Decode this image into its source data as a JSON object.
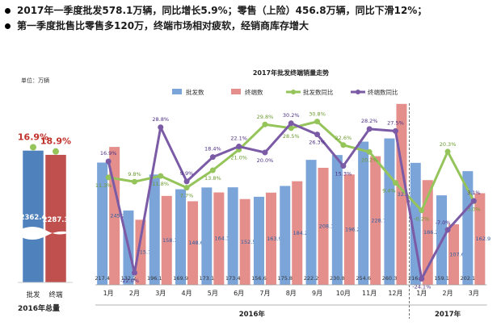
{
  "headline": {
    "bullets": [
      "2017年一季度批发578.1万辆，同比增长5.9%；零售（上险）456.8万辆，同比下滑12%；",
      "第一季度批售比零售多120万，终端市场相对疲软，经销商库存增大"
    ]
  },
  "colors": {
    "wholesale": "#7BA4D9",
    "retail": "#E48F8C",
    "wholesale_yoy": "#95C45A",
    "retail_yoy": "#7B5AA6",
    "pct_red": "#C0312B",
    "left_blue": "#4F81BD",
    "left_red": "#C0504D"
  },
  "chart_data": [
    {
      "type": "bar",
      "title": "",
      "unit_label": "单位：万辆",
      "categories": [
        "批发",
        "终端"
      ],
      "values": [
        2362.4,
        2287.3
      ],
      "growth_labels": [
        "16.9%",
        "18.9%"
      ],
      "footer": "2016年总量",
      "ylim": [
        0,
        2600
      ]
    },
    {
      "type": "bar",
      "title": "2017年批发终端销量走势",
      "categories": [
        "1月",
        "2月",
        "3月",
        "4月",
        "5月",
        "6月",
        "7月",
        "8月",
        "9月",
        "10月",
        "11月",
        "12月",
        "1月",
        "2月",
        "3月"
      ],
      "year_groups": [
        {
          "label": "2016年",
          "from": 0,
          "to": 11
        },
        {
          "label": "2017年",
          "from": 12,
          "to": 14
        }
      ],
      "series": [
        {
          "name": "批发数",
          "type": "bar",
          "values": [
            217.4,
            132.2,
            196.1,
            169.9,
            173.1,
            173.4,
            156.6,
            175.8,
            222.2,
            230.8,
            254.6,
            260.3,
            216.9,
            159.1,
            202.1
          ]
        },
        {
          "name": "终端数",
          "type": "bar",
          "values": [
            245.2,
            115.7,
            158.1,
            148.6,
            164.3,
            152.5,
            163.9,
            184.2,
            208.1,
            196.2,
            228.7,
            321.7,
            186.2,
            107.6,
            162.9
          ]
        },
        {
          "name": "批发数同比",
          "type": "line",
          "values": [
            11.3,
            9.8,
            11.8,
            7.7,
            13.8,
            21.0,
            29.8,
            28.5,
            30.8,
            22.6,
            20.2,
            9.4,
            -0.2,
            20.3,
            3.0
          ],
          "labels": [
            "11.3%",
            "9.8%",
            "11.8%",
            "7.7%",
            "13.8%",
            "21.0%",
            "29.8%",
            "28.5%",
            "30.8%",
            "22.6%",
            "20.2%",
            "9.4%",
            "-0.2%",
            "20.3%",
            "3.0%"
          ]
        },
        {
          "name": "终端数同比",
          "type": "line",
          "values": [
            16.9,
            -22.0,
            28.8,
            9.9,
            18.4,
            22.1,
            20.0,
            30.2,
            26.3,
            15.3,
            28.2,
            27.5,
            -24.1,
            -7.0,
            3.1
          ],
          "labels": [
            "16.9%",
            "-22.0%",
            "28.8%",
            "9.9%",
            "18.4%",
            "22.1%",
            "20.0%",
            "30.2%",
            "26.3%",
            "15.3%",
            "28.2%",
            "27.5%",
            "-24.1%",
            "-7.0%",
            "3.1%"
          ]
        }
      ],
      "legend_position": "top"
    }
  ]
}
